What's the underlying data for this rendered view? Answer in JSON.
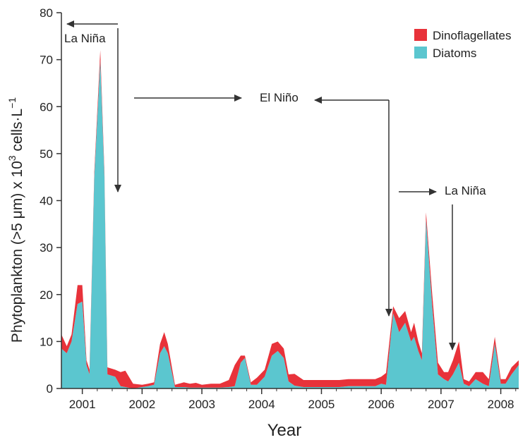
{
  "chart_data": {
    "type": "area",
    "title": "",
    "xlabel": "Year",
    "ylabel_main": "Phytoplankton (>5 μm) x 10",
    "ylabel_sup": "3",
    "ylabel_tail": " cells·L",
    "ylabel_sup2": "−1",
    "xlim": [
      2000.65,
      2008.3
    ],
    "ylim": [
      0,
      80
    ],
    "yticks": [
      0,
      10,
      20,
      30,
      40,
      50,
      60,
      70,
      80
    ],
    "ytick_labels": [
      "0",
      "10",
      "20",
      "30",
      "40",
      "50",
      "60",
      "70",
      "80"
    ],
    "xticks": [
      2001,
      2002,
      2003,
      2004,
      2005,
      2006,
      2007,
      2008
    ],
    "xtick_labels": [
      "2001",
      "2002",
      "2003",
      "2004",
      "2005",
      "2006",
      "2007",
      "2008"
    ],
    "legend_position": "top-right",
    "stacking": "stacked",
    "x": [
      2000.65,
      2000.74,
      2000.82,
      2000.92,
      2001.0,
      2001.07,
      2001.12,
      2001.2,
      2001.3,
      2001.37,
      2001.42,
      2001.55,
      2001.64,
      2001.72,
      2001.85,
      2002.0,
      2002.1,
      2002.2,
      2002.3,
      2002.37,
      2002.43,
      2002.55,
      2002.7,
      2002.8,
      2002.9,
      2003.0,
      2003.15,
      2003.3,
      2003.45,
      2003.55,
      2003.65,
      2003.72,
      2003.82,
      2003.92,
      2004.05,
      2004.17,
      2004.27,
      2004.37,
      2004.45,
      2004.55,
      2004.7,
      2004.85,
      2005.0,
      2005.15,
      2005.3,
      2005.45,
      2005.6,
      2005.75,
      2005.9,
      2006.0,
      2006.08,
      2006.2,
      2006.3,
      2006.4,
      2006.5,
      2006.55,
      2006.62,
      2006.68,
      2006.75,
      2006.85,
      2006.95,
      2007.05,
      2007.12,
      2007.2,
      2007.3,
      2007.38,
      2007.47,
      2007.58,
      2007.7,
      2007.8,
      2007.9,
      2008.0,
      2008.08,
      2008.18,
      2008.3
    ],
    "series": [
      {
        "name": "Diatoms",
        "color": "#5bc6cf",
        "values": [
          8.5,
          7.5,
          10,
          18,
          18.5,
          5,
          3,
          45,
          70,
          45,
          3,
          2.5,
          0.5,
          0.3,
          0,
          0.3,
          0.5,
          0.8,
          7.5,
          9,
          7.5,
          0.3,
          0.3,
          0.2,
          0.2,
          0.2,
          0.2,
          0.2,
          0.3,
          0.5,
          5.5,
          6.5,
          0.8,
          0.8,
          2.5,
          7,
          8,
          6.5,
          1.5,
          0.6,
          0.3,
          0.3,
          0.3,
          0.3,
          0.3,
          0.5,
          0.5,
          0.5,
          0.5,
          1,
          0.8,
          16,
          12,
          14,
          10,
          11,
          8,
          6,
          36,
          18,
          3,
          2,
          1.5,
          3,
          5.5,
          1,
          0.5,
          2,
          1,
          0.5,
          9.5,
          1,
          1,
          3,
          5
        ]
      },
      {
        "name": "Dinoflagellates",
        "color": "#e8323a",
        "values": [
          3,
          1.5,
          1.5,
          4,
          3.5,
          1,
          1,
          1,
          2,
          1,
          1.5,
          1.5,
          3,
          3.5,
          1,
          0.5,
          0.5,
          0.5,
          2,
          3,
          2,
          0.5,
          1,
          0.8,
          1,
          0.6,
          0.8,
          0.8,
          1.5,
          4.5,
          1.5,
          0.5,
          0.5,
          1.5,
          1.5,
          2.5,
          2,
          2,
          1.5,
          2.5,
          1.5,
          1.5,
          1.5,
          1.5,
          1.5,
          1.5,
          1.5,
          1.5,
          1.5,
          1.5,
          2.5,
          1.5,
          3,
          2.5,
          2,
          3,
          2,
          1.5,
          1.5,
          2.5,
          2.5,
          1.5,
          2,
          3,
          4.5,
          1,
          1,
          1.5,
          2.5,
          1.5,
          1.5,
          1,
          1,
          1.5,
          1
        ]
      }
    ],
    "legend": [
      {
        "label": "Dinoflagellates",
        "color": "#e8323a"
      },
      {
        "label": "Diatoms",
        "color": "#5bc6cf"
      }
    ],
    "annotations": [
      {
        "text": "La Niña"
      },
      {
        "text": "El Niño"
      },
      {
        "text": "La Niña"
      }
    ]
  }
}
